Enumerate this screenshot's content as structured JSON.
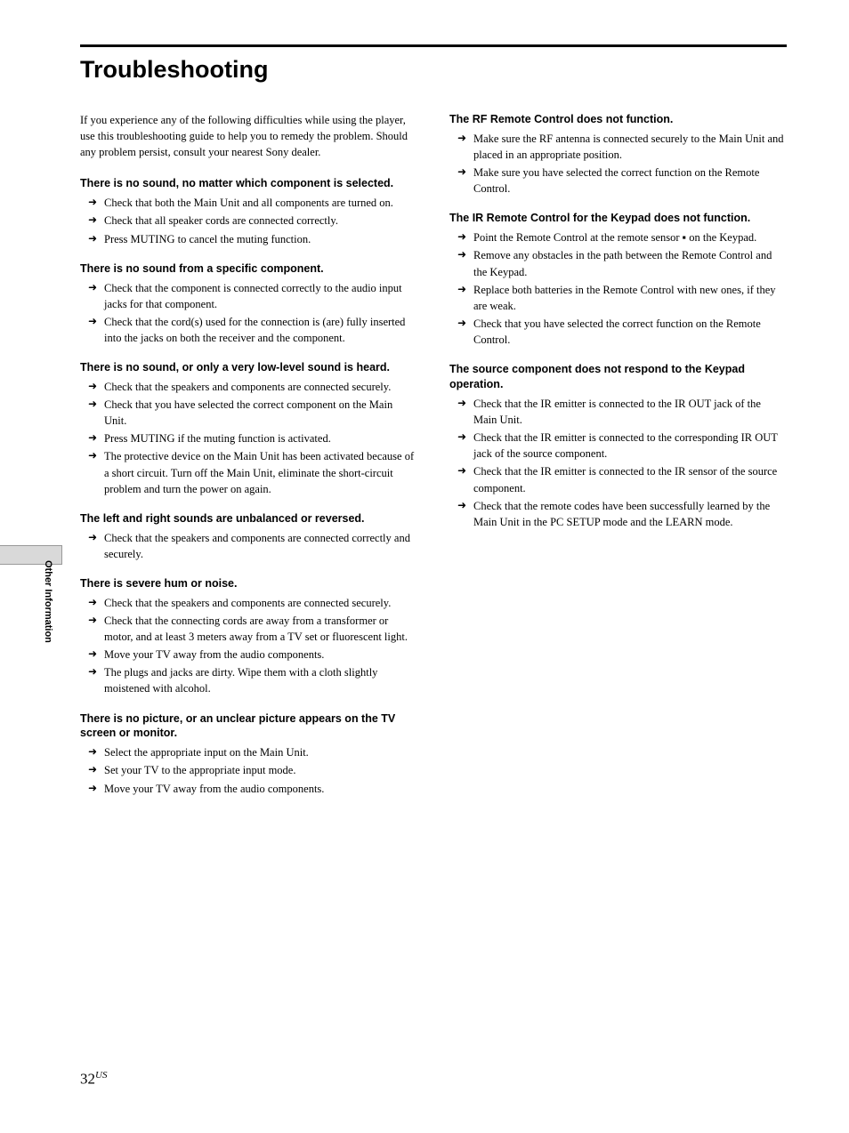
{
  "title": "Troubleshooting",
  "intro": "If you experience any of the following difficulties while using the player, use this troubleshooting guide to help you to remedy the problem.  Should any problem persist, consult your nearest Sony dealer.",
  "side_label": "Other Information",
  "page_number": "32",
  "page_suffix": "US",
  "left_sections": [
    {
      "heading": "There is no sound, no matter which component is selected.",
      "items": [
        "Check that both the Main Unit and all components are turned on.",
        "Check that all speaker cords are connected correctly.",
        "Press MUTING to cancel the muting function."
      ]
    },
    {
      "heading": "There is no sound from a specific component.",
      "items": [
        "Check that the component is connected correctly to the audio input jacks for that component.",
        "Check that the cord(s) used for the connection is (are) fully inserted into the jacks on both the receiver and the component."
      ]
    },
    {
      "heading": "There is no sound, or only a very low-level sound is heard.",
      "items": [
        "Check that the speakers and components are connected securely.",
        "Check that you have selected the correct component on the Main Unit.",
        "Press MUTING if the muting function is activated.",
        "The protective device on the Main Unit has been activated because of a short circuit. Turn off the Main Unit, eliminate the short-circuit problem and turn the power on again."
      ]
    },
    {
      "heading": "The left and right sounds are unbalanced or reversed.",
      "items": [
        "Check that the speakers and components are connected correctly and securely."
      ]
    },
    {
      "heading": "There is severe hum or noise.",
      "items": [
        "Check that the speakers and components are connected securely.",
        "Check that the connecting cords are away from a transformer or motor, and at least 3 meters away from a TV set or fluorescent light.",
        "Move your TV away from the audio components.",
        "The plugs and jacks are dirty. Wipe them with a cloth slightly moistened with alcohol."
      ]
    },
    {
      "heading": "There is no picture, or an unclear picture appears on the TV screen or monitor.",
      "items": [
        "Select the appropriate input on the Main Unit.",
        "Set your TV to the appropriate input mode.",
        "Move your TV away from the audio components."
      ]
    }
  ],
  "right_sections": [
    {
      "heading": "The RF Remote Control does not function.",
      "items": [
        "Make sure the RF antenna is connected securely to the Main Unit and placed in an appropriate position.",
        "Make sure you have selected the correct function on the Remote Control."
      ]
    },
    {
      "heading": "The IR Remote Control for the Keypad does not function.",
      "items": [
        "Point the Remote Control at the remote sensor ▪ on the Keypad.",
        "Remove any obstacles in the path between the Remote Control and the Keypad.",
        "Replace both batteries in the Remote Control with new ones, if they are weak.",
        "Check that you have selected the correct function on the Remote Control."
      ]
    },
    {
      "heading": "The source component does not respond to the Keypad operation.",
      "items": [
        "Check that the IR emitter is connected to the IR OUT jack of the Main Unit.",
        "Check that the IR emitter is connected to the corresponding IR OUT jack of the source component.",
        "Check that the IR emitter is connected to the IR sensor of the source component.",
        "Check that the remote codes have been successfully learned by the Main Unit in the PC SETUP mode and the LEARN mode."
      ]
    }
  ]
}
